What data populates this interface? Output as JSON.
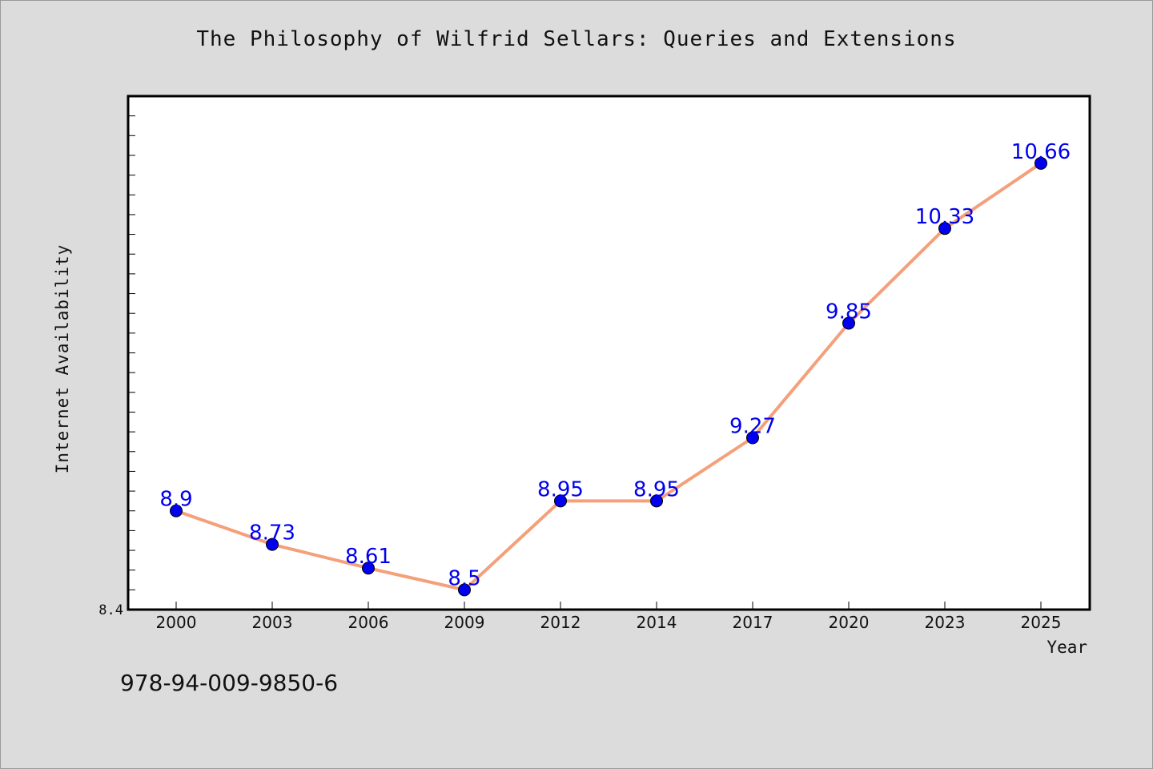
{
  "chart_data": {
    "type": "line",
    "title": "The Philosophy of Wilfrid Sellars: Queries and Extensions",
    "xlabel": "Year",
    "ylabel": "Internet Availability",
    "categories": [
      "2000",
      "2003",
      "2006",
      "2009",
      "2012",
      "2014",
      "2017",
      "2020",
      "2023",
      "2025"
    ],
    "series": [
      {
        "values": [
          8.9,
          8.73,
          8.61,
          8.5,
          8.95,
          8.95,
          9.27,
          9.85,
          10.33,
          10.66
        ]
      }
    ],
    "ylim": [
      8.4,
      11.0
    ],
    "y_tick_labels": [
      "8.4"
    ],
    "grid": false,
    "line_color": "#f4a07a",
    "marker_color": "#0000ee",
    "label_color": "#0000ee"
  },
  "caption": "978-94-009-9850-6"
}
